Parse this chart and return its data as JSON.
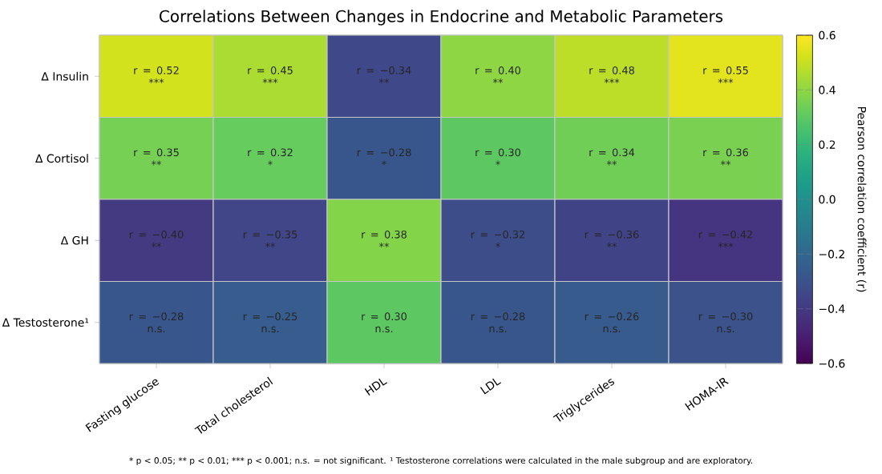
{
  "chart_data": {
    "type": "heatmap",
    "title": "Correlations Between Changes in Endocrine and Metabolic Parameters",
    "categories": [
      "Fasting glucose",
      "Total cholesterol",
      "HDL",
      "LDL",
      "Triglycerides",
      "HOMA-IR"
    ],
    "y_categories": [
      "Δ Insulin",
      "Δ Cortisol",
      "Δ GH",
      "Δ Testosterone¹"
    ],
    "cells": [
      [
        0.52,
        0.45,
        -0.34,
        0.4,
        0.48,
        0.55
      ],
      [
        0.35,
        0.32,
        -0.28,
        0.3,
        0.34,
        0.36
      ],
      [
        -0.4,
        -0.35,
        0.38,
        -0.32,
        -0.36,
        -0.42
      ],
      [
        -0.28,
        -0.25,
        0.3,
        -0.28,
        -0.26,
        -0.3
      ]
    ],
    "cell_labels": [
      [
        "r = 0.52 ***",
        "r = 0.45 ***",
        "r = −0.34 **",
        "r = 0.40 **",
        "r = 0.48 ***",
        "r = 0.55 ***"
      ],
      [
        "r = 0.35 **",
        "r = 0.32 *",
        "r = −0.28 *",
        "r = 0.30 *",
        "r = 0.34 **",
        "r = 0.36 **"
      ],
      [
        "r = −0.40 **",
        "r = −0.35 **",
        "r = 0.38 **",
        "r = −0.32 *",
        "r = −0.36 **",
        "r = −0.42 ***"
      ],
      [
        "r = −0.28 n.s.",
        "r = −0.25 n.s.",
        "r = 0.30 n.s.",
        "r = −0.28 n.s.",
        "r = −0.26 n.s.",
        "r = −0.30 n.s."
      ]
    ],
    "clim": [
      -0.6,
      0.6
    ],
    "cticks": [
      {
        "value": -0.6,
        "label": "−0.6"
      },
      {
        "value": -0.4,
        "label": "−0.4"
      },
      {
        "value": -0.2,
        "label": "−0.2"
      },
      {
        "value": 0,
        "label": "0.0"
      },
      0.2,
      0.4,
      0.6
    ],
    "clabel": "Pearson correlation coefficient (r)",
    "annotations": [
      "* p < 0.05; ** p < 0.01; *** p < 0.001; n.s. = not significant. ¹ Testosterone correlations were calculated in the male subgroup and are exploratory."
    ]
  }
}
